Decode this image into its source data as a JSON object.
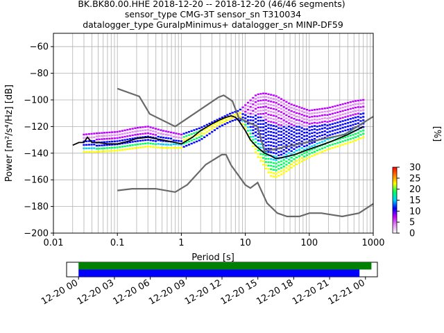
{
  "header": {
    "title_line1": "BK.BK80.00.HHE   2018-12-20 -- 2018-12-20  (46/46 segments)",
    "title_line2": "sensor_type CMG-3T sensor_sn T310034",
    "title_line3": "datalogger_type GuralpMinimus+ datalogger_sn MINP-DF59"
  },
  "chart_data": [
    {
      "type": "heatmap",
      "xlabel": "Period [s]",
      "ylabel": "Power [m²/s⁴/Hz] [dB]",
      "xscale": "log",
      "xlim": [
        0.01,
        1000
      ],
      "ylim": [
        -200,
        -50
      ],
      "x_ticks": [
        0.01,
        0.1,
        1,
        10,
        100,
        1000
      ],
      "x_tick_labels": [
        "0.01",
        "0.1",
        "1",
        "10",
        "100",
        "1000"
      ],
      "y_ticks": [
        -200,
        -180,
        -160,
        -140,
        -120,
        -100,
        -80,
        -60
      ],
      "y_tick_labels": [
        "−200",
        "−180",
        "−160",
        "−140",
        "−120",
        "−100",
        "−80",
        "−60"
      ],
      "grid": true,
      "colorbar": {
        "label": "[%]",
        "range": [
          0,
          30
        ],
        "ticks": [
          0,
          5,
          10,
          15,
          20,
          25,
          30
        ],
        "tick_labels": [
          "0",
          "5",
          "10",
          "15",
          "20",
          "25",
          "30"
        ],
        "colors": [
          "#ffffff",
          "#e090f0",
          "#c000ff",
          "#0000ff",
          "#00d0ff",
          "#00ff60",
          "#ffff00",
          "#ff8000",
          "#ff0000"
        ]
      },
      "mode_curve": {
        "period": [
          0.02,
          0.025,
          0.03,
          0.034,
          0.04,
          0.05,
          0.07,
          0.1,
          0.15,
          0.2,
          0.3,
          0.5,
          0.8,
          1.0,
          1.5,
          2,
          3,
          4,
          5,
          6,
          7,
          8,
          10,
          12,
          15,
          20,
          25,
          30,
          40,
          60,
          100,
          200,
          400,
          700
        ],
        "power": [
          -134,
          -132,
          -132,
          -128,
          -132,
          -132,
          -133,
          -133,
          -131,
          -129,
          -128,
          -130,
          -132,
          -133,
          -128,
          -123,
          -118,
          -115,
          -113,
          -112,
          -113,
          -116,
          -123,
          -130,
          -135,
          -140,
          -142,
          -144,
          -143,
          -141,
          -137,
          -132,
          -126,
          -120
        ]
      },
      "noise_models": [
        {
          "period": [
            0.1,
            0.22,
            0.32,
            0.8,
            3.8,
            4.6,
            6.3,
            7.9,
            15.4,
            20,
            354.8,
            1000
          ],
          "power": [
            -91.5,
            -97.4,
            -110.5,
            -120,
            -98,
            -96.5,
            -101,
            -113.5,
            -120,
            -138.5,
            -126,
            -112.5
          ]
        },
        {
          "period": [
            0.1,
            0.17,
            0.4,
            0.8,
            1.24,
            2.4,
            4.3,
            5,
            6,
            10,
            12,
            15.6,
            21.9,
            31.6,
            45,
            70,
            101,
            154,
            328,
            600,
            1000
          ],
          "power": [
            -168,
            -166.7,
            -166.7,
            -169.2,
            -163.7,
            -148.6,
            -141.1,
            -141.1,
            -149,
            -163.8,
            -166.2,
            -162.1,
            -177.5,
            -185,
            -187.5,
            -187.5,
            -185,
            -185,
            -187.5,
            -185,
            -178
          ]
        }
      ],
      "spread_curves": [
        {
          "period": [
            0.03,
            0.05,
            0.1,
            0.2,
            0.3,
            0.5,
            1,
            2,
            4,
            6,
            8,
            10,
            15,
            20,
            30,
            50,
            100,
            200,
            500,
            700
          ],
          "power": [
            -126,
            -125,
            -124,
            -121,
            -120,
            -123,
            -126,
            -121,
            -114,
            -110,
            -108,
            -104,
            -96,
            -95,
            -97,
            -103,
            -108,
            -106,
            -101,
            -100
          ]
        },
        {
          "period": [
            0.03,
            0.05,
            0.1,
            0.2,
            0.3,
            0.5,
            1,
            2,
            4,
            6,
            8,
            10,
            15,
            20,
            30,
            50,
            100,
            200,
            500,
            700
          ],
          "power": [
            -130,
            -129,
            -128,
            -125,
            -124,
            -127,
            -130,
            -124,
            -116,
            -113,
            -110,
            -105,
            -100,
            -101,
            -104,
            -109,
            -113,
            -110,
            -105,
            -104
          ]
        },
        {
          "period": [
            0.03,
            0.05,
            0.1,
            0.2,
            0.3,
            0.5,
            1,
            2,
            4,
            6,
            8,
            10,
            15,
            20,
            30,
            50,
            100,
            200,
            500,
            700
          ],
          "power": [
            -134,
            -133,
            -132,
            -129,
            -128,
            -131,
            -133,
            -127,
            -118,
            -114,
            -112,
            -110,
            -106,
            -108,
            -112,
            -117,
            -120,
            -117,
            -112,
            -110
          ]
        },
        {
          "period": [
            0.03,
            0.05,
            0.1,
            0.2,
            0.3,
            0.5,
            1,
            2,
            4,
            6,
            8,
            10,
            15,
            20,
            30,
            50,
            100,
            200,
            500,
            700
          ],
          "power": [
            -137,
            -137,
            -136,
            -133,
            -132,
            -134,
            -135,
            -129,
            -119,
            -115,
            -113,
            -116,
            -128,
            -136,
            -141,
            -139,
            -135,
            -130,
            -123,
            -120
          ]
        },
        {
          "period": [
            0.03,
            0.05,
            0.1,
            0.2,
            0.3,
            0.5,
            1,
            2,
            4,
            6,
            8,
            10,
            15,
            20,
            30,
            50,
            100,
            200,
            500,
            700
          ],
          "power": [
            -139,
            -139,
            -138,
            -136,
            -135,
            -136,
            -136,
            -130,
            -120,
            -116,
            -114,
            -119,
            -135,
            -146,
            -154,
            -150,
            -142,
            -136,
            -129,
            -126
          ]
        },
        {
          "period": [
            8,
            10,
            15,
            20,
            25,
            30,
            40,
            60,
            100,
            200,
            500,
            700
          ],
          "power": [
            -114,
            -121,
            -141,
            -150,
            -157,
            -158,
            -155,
            -149,
            -143,
            -137,
            -131,
            -128
          ]
        }
      ]
    },
    {
      "type": "timeline",
      "xlim": [
        "2018-12-19 23:00",
        "2018-12-21 01:00"
      ],
      "tick_labels": [
        "12-20 00",
        "12-20 03",
        "12-20 06",
        "12-20 09",
        "12-20 12",
        "12-20 15",
        "12-20 18",
        "12-20 21",
        "12-21 00"
      ],
      "bars": [
        {
          "color": "#008000",
          "start": "2018-12-20 00:00",
          "end": "2018-12-21 00:30"
        },
        {
          "color": "#0000ff",
          "start": "2018-12-20 00:00",
          "end": "2018-12-20 23:30"
        }
      ]
    }
  ]
}
